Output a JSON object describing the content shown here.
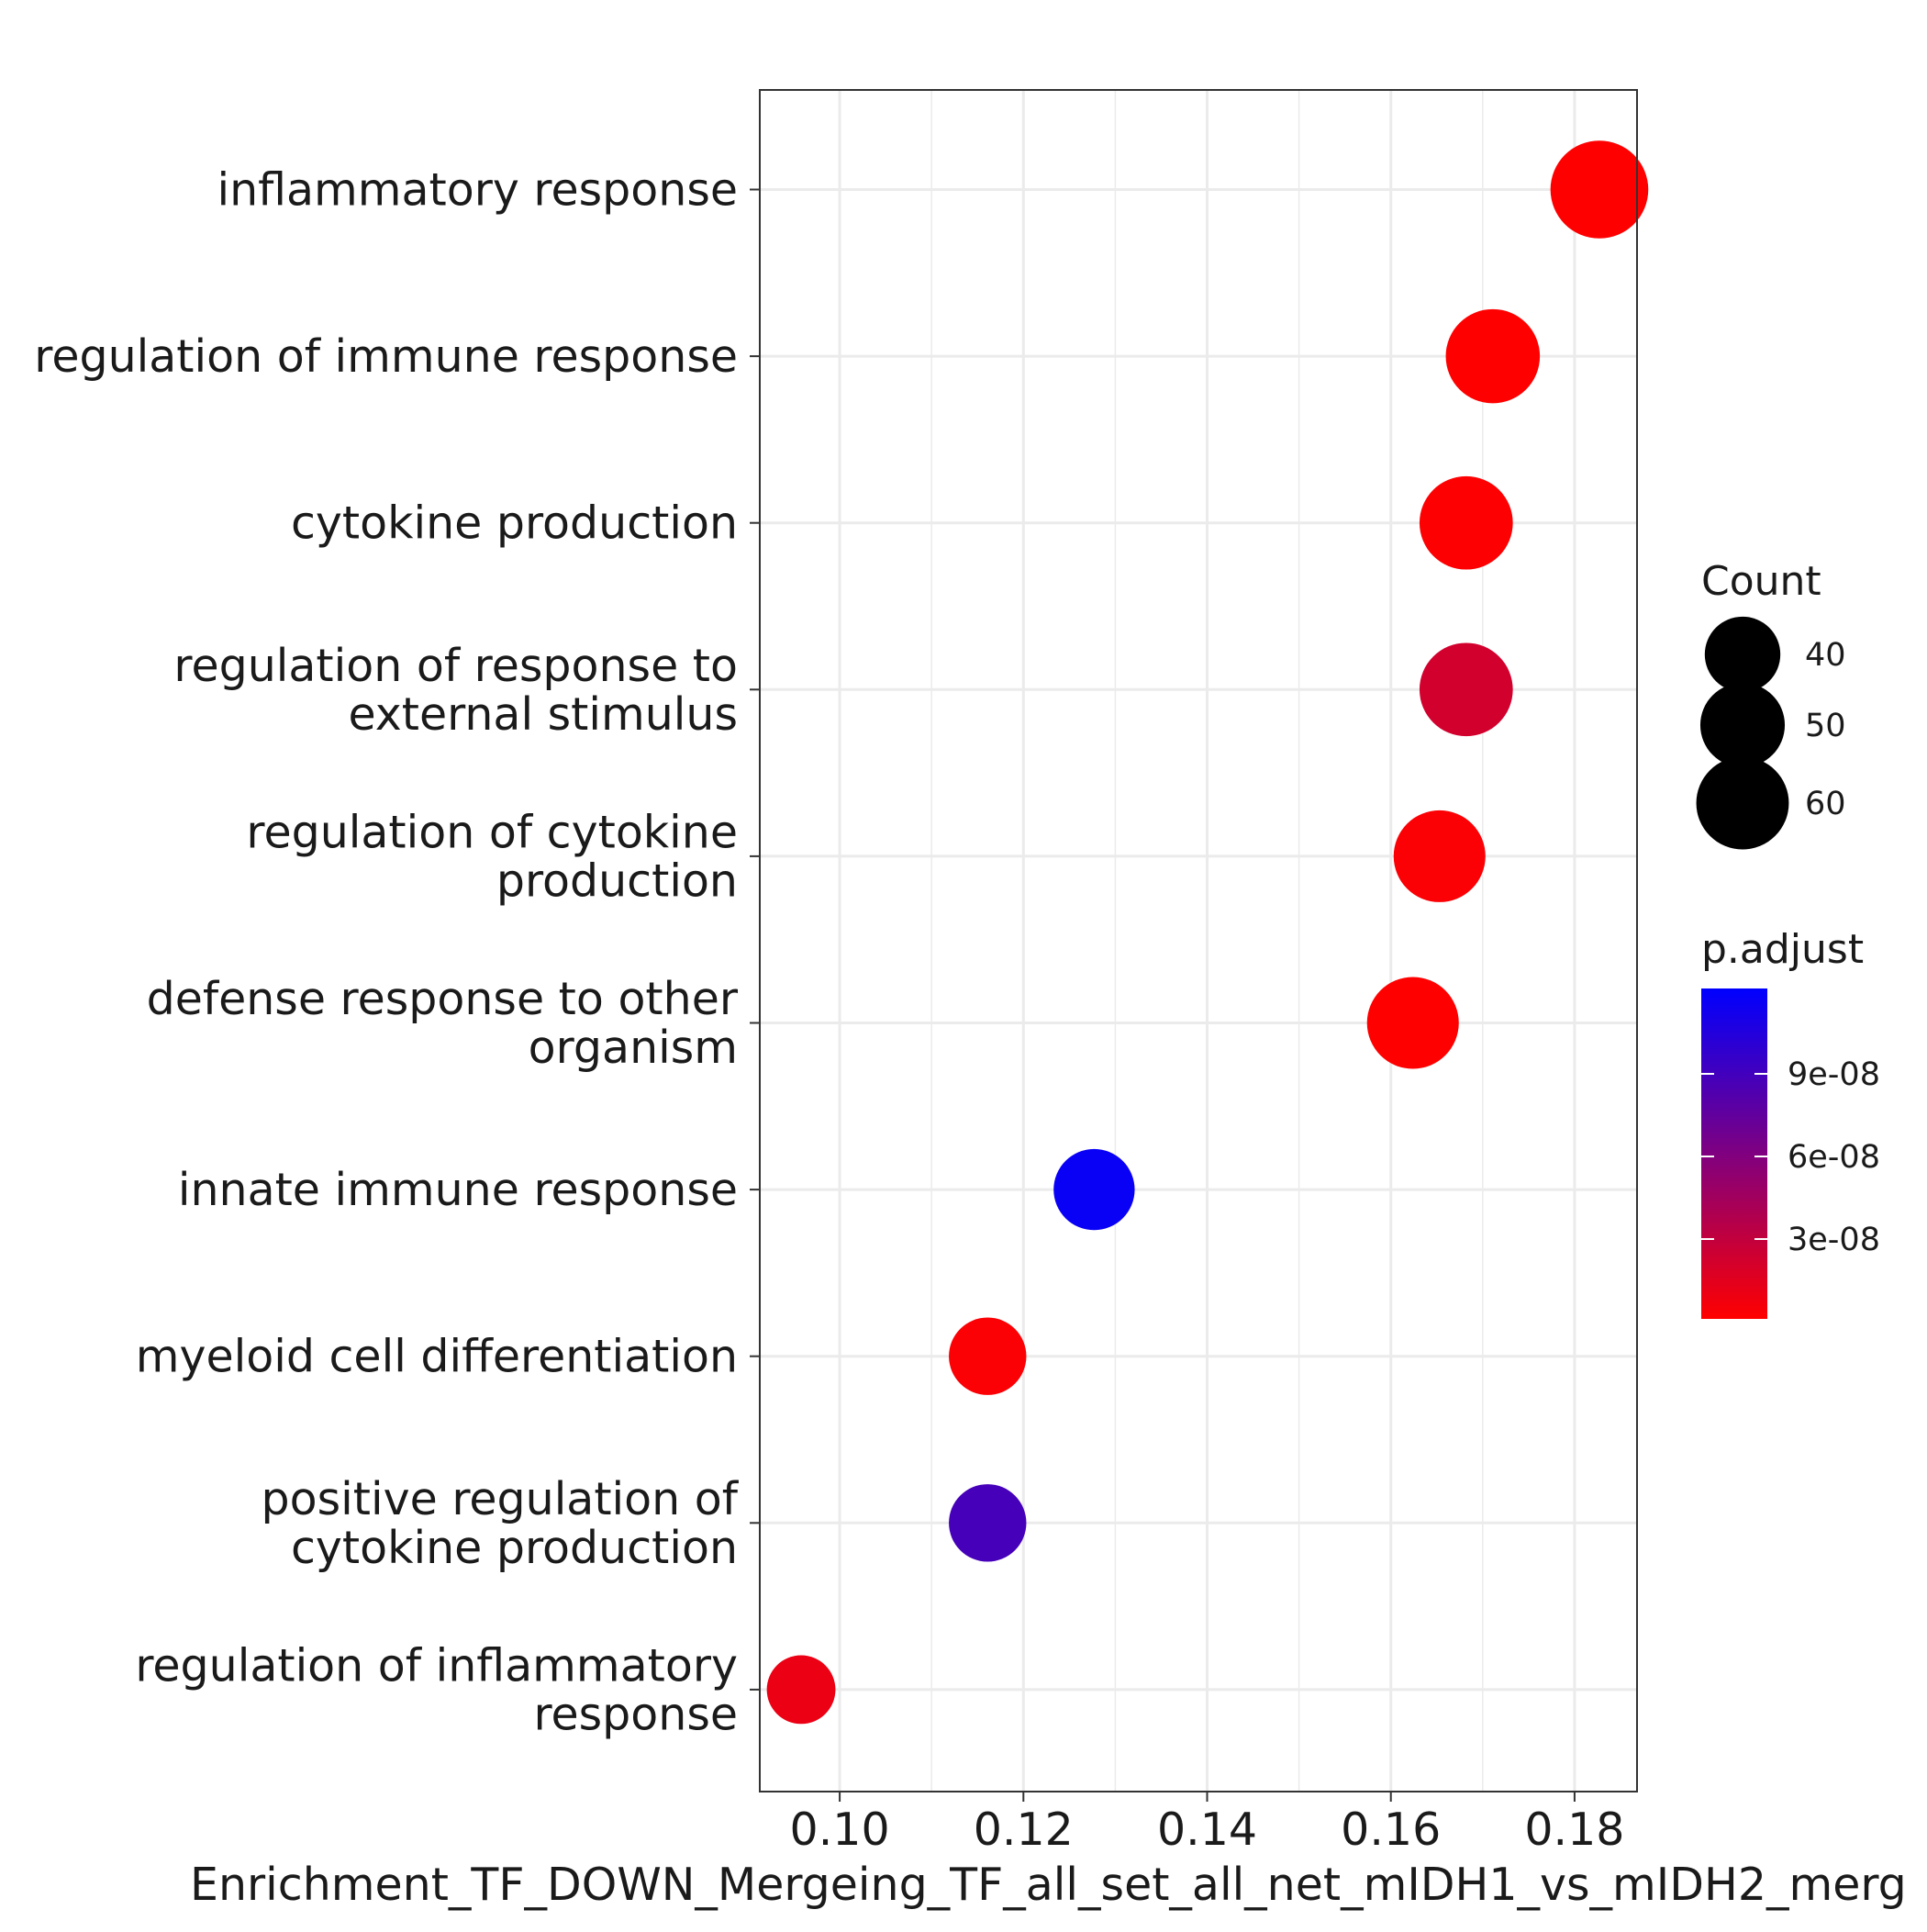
{
  "chart_data": {
    "type": "scatter",
    "title": "",
    "xlabel": "Enrichment_TF_DOWN_Mergeing_TF_all_set_all_net_mIDH1_vs_mIDH2_merg",
    "ylabel": "",
    "xlim": [
      0.0913,
      0.1868
    ],
    "x_ticks": [
      0.1,
      0.12,
      0.14,
      0.16,
      0.18
    ],
    "x_tick_labels": [
      "0.10",
      "0.12",
      "0.14",
      "0.16",
      "0.18"
    ],
    "grid": true,
    "categories": [
      {
        "label_lines": [
          "inflammatory response"
        ],
        "x": 0.1827,
        "count": 67,
        "p_adjust": 1e-09
      },
      {
        "label_lines": [
          "regulation of immune response"
        ],
        "x": 0.1711,
        "count": 62,
        "p_adjust": 1e-09
      },
      {
        "label_lines": [
          "cytokine production"
        ],
        "x": 0.1682,
        "count": 61,
        "p_adjust": 2e-09
      },
      {
        "label_lines": [
          "regulation of response to",
          "external stimulus"
        ],
        "x": 0.1682,
        "count": 61,
        "p_adjust": 2.2e-08
      },
      {
        "label_lines": [
          "regulation of cytokine",
          "production"
        ],
        "x": 0.1653,
        "count": 59,
        "p_adjust": 3e-09
      },
      {
        "label_lines": [
          "defense response to other",
          "organism"
        ],
        "x": 0.1624,
        "count": 59,
        "p_adjust": 1e-09
      },
      {
        "label_lines": [
          "innate immune response"
        ],
        "x": 0.1277,
        "count": 46,
        "p_adjust": 1.17e-07
      },
      {
        "label_lines": [
          "myeloid cell differentiation"
        ],
        "x": 0.1161,
        "count": 42,
        "p_adjust": 3e-09
      },
      {
        "label_lines": [
          "positive regulation of",
          "cytokine production"
        ],
        "x": 0.1161,
        "count": 42,
        "p_adjust": 8.8e-08
      },
      {
        "label_lines": [
          "regulation of inflammatory",
          "response"
        ],
        "x": 0.0958,
        "count": 33,
        "p_adjust": 1e-08
      }
    ],
    "legend_size": {
      "title": "Count",
      "entries": [
        {
          "label": "40",
          "value": 40
        },
        {
          "label": "50",
          "value": 50
        },
        {
          "label": "60",
          "value": 60
        }
      ]
    },
    "legend_color": {
      "title": "p.adjust",
      "range": [
        1e-09,
        1.21e-07
      ],
      "low_color": "#FF0000",
      "high_color": "#0000FF",
      "ticks": [
        {
          "label": "3e-08",
          "value": 3e-08
        },
        {
          "label": "6e-08",
          "value": 6e-08
        },
        {
          "label": "9e-08",
          "value": 9e-08
        }
      ]
    }
  }
}
